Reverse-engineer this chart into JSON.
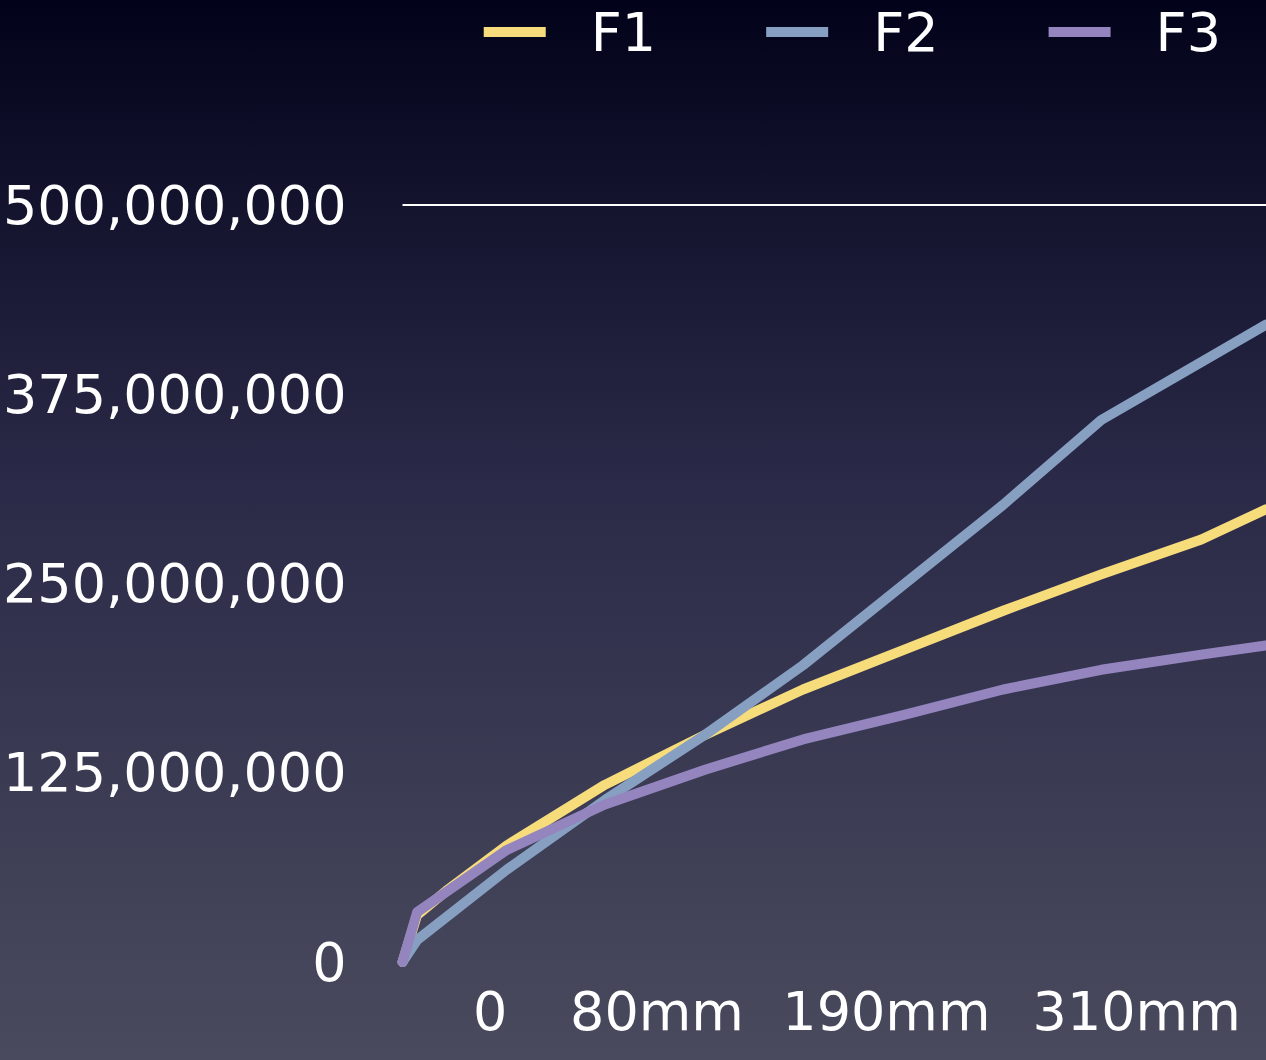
{
  "chart_data": {
    "type": "line",
    "legend": "top right",
    "grid": false,
    "marker": "none",
    "line_style": "solid",
    "xlim": [
      -42,
      372
    ],
    "xticks": [
      0,
      {
        "value": 80,
        "label": "80mm"
      },
      {
        "value": 190,
        "label": "190mm"
      },
      {
        "value": 310,
        "label": "310mm"
      }
    ],
    "ylim": [
      0,
      500000000
    ],
    "yticks": [
      0,
      {
        "value": 125000000,
        "label": "125,000,000"
      },
      {
        "value": 250000000,
        "label": "250,000,000"
      },
      {
        "value": 375000000,
        "label": "375,000,000"
      },
      {
        "value": 500000000,
        "label": "500,000,000"
      }
    ],
    "ref_lines": [
      {
        "axis": "y",
        "value": 500000000,
        "color": "#ffffff"
      }
    ],
    "series": [
      {
        "name": "F1",
        "color": "#f7dc7c",
        "x": [
          -42,
          -35,
          -21,
          8,
          55,
          103,
          150,
          198,
          246,
          293,
          341,
          372
        ],
        "values": [
          0,
          31000000,
          47000000,
          77000000,
          117000000,
          150000000,
          180000000,
          206000000,
          232000000,
          256000000,
          279000000,
          299000000
        ]
      },
      {
        "name": "F2",
        "color": "#87a0c2",
        "x": [
          -42,
          -35,
          8,
          55,
          103,
          150,
          198,
          246,
          293,
          372
        ],
        "values": [
          0,
          14500000,
          61000000,
          107000000,
          150000000,
          196000000,
          249000000,
          302000000,
          358000000,
          421000000
        ]
      },
      {
        "name": "F3",
        "color": "#9585bf",
        "x": [
          -42,
          -35,
          8,
          55,
          103,
          150,
          198,
          246,
          293,
          341,
          372
        ],
        "values": [
          0,
          33000000,
          74000000,
          104000000,
          127000000,
          147000000,
          163000000,
          180000000,
          193000000,
          203000000,
          209000000
        ]
      }
    ]
  }
}
